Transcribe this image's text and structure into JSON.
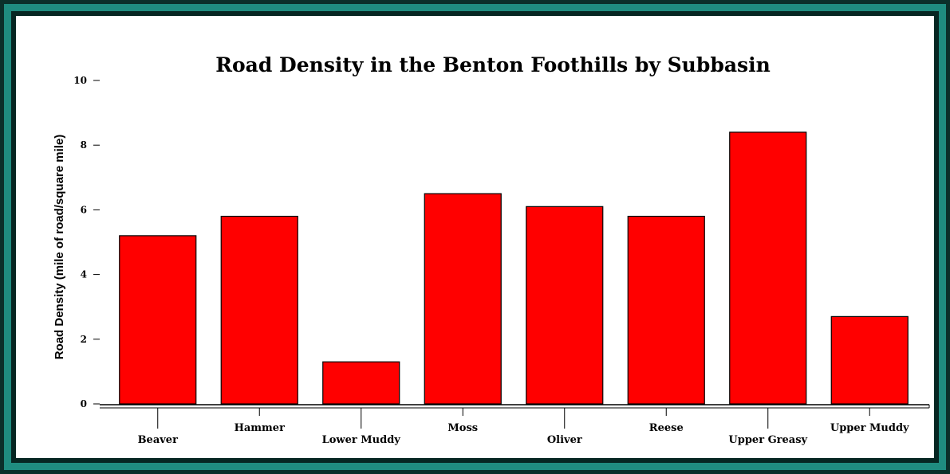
{
  "chart_data": {
    "type": "bar",
    "title": "Road Density in the Benton Foothills by Subbasin",
    "xlabel": "",
    "ylabel": "Road Density (mile of road/square mile)",
    "categories": [
      "Beaver",
      "Hammer",
      "Lower Muddy",
      "Moss",
      "Oliver",
      "Reese",
      "Upper Greasy",
      "Upper Muddy"
    ],
    "values": [
      5.2,
      5.8,
      1.3,
      6.5,
      6.1,
      5.8,
      8.4,
      2.7
    ],
    "ylim": [
      0,
      10
    ],
    "yticks": [
      "0",
      "2",
      "4",
      "6",
      "8",
      "10"
    ],
    "grid": false,
    "legend": "none",
    "colors": {
      "bar": "#ff0000",
      "bar_stroke": "#000000",
      "frame_dark": "#0b2f2a",
      "frame_teal": "#1f8c80"
    }
  }
}
